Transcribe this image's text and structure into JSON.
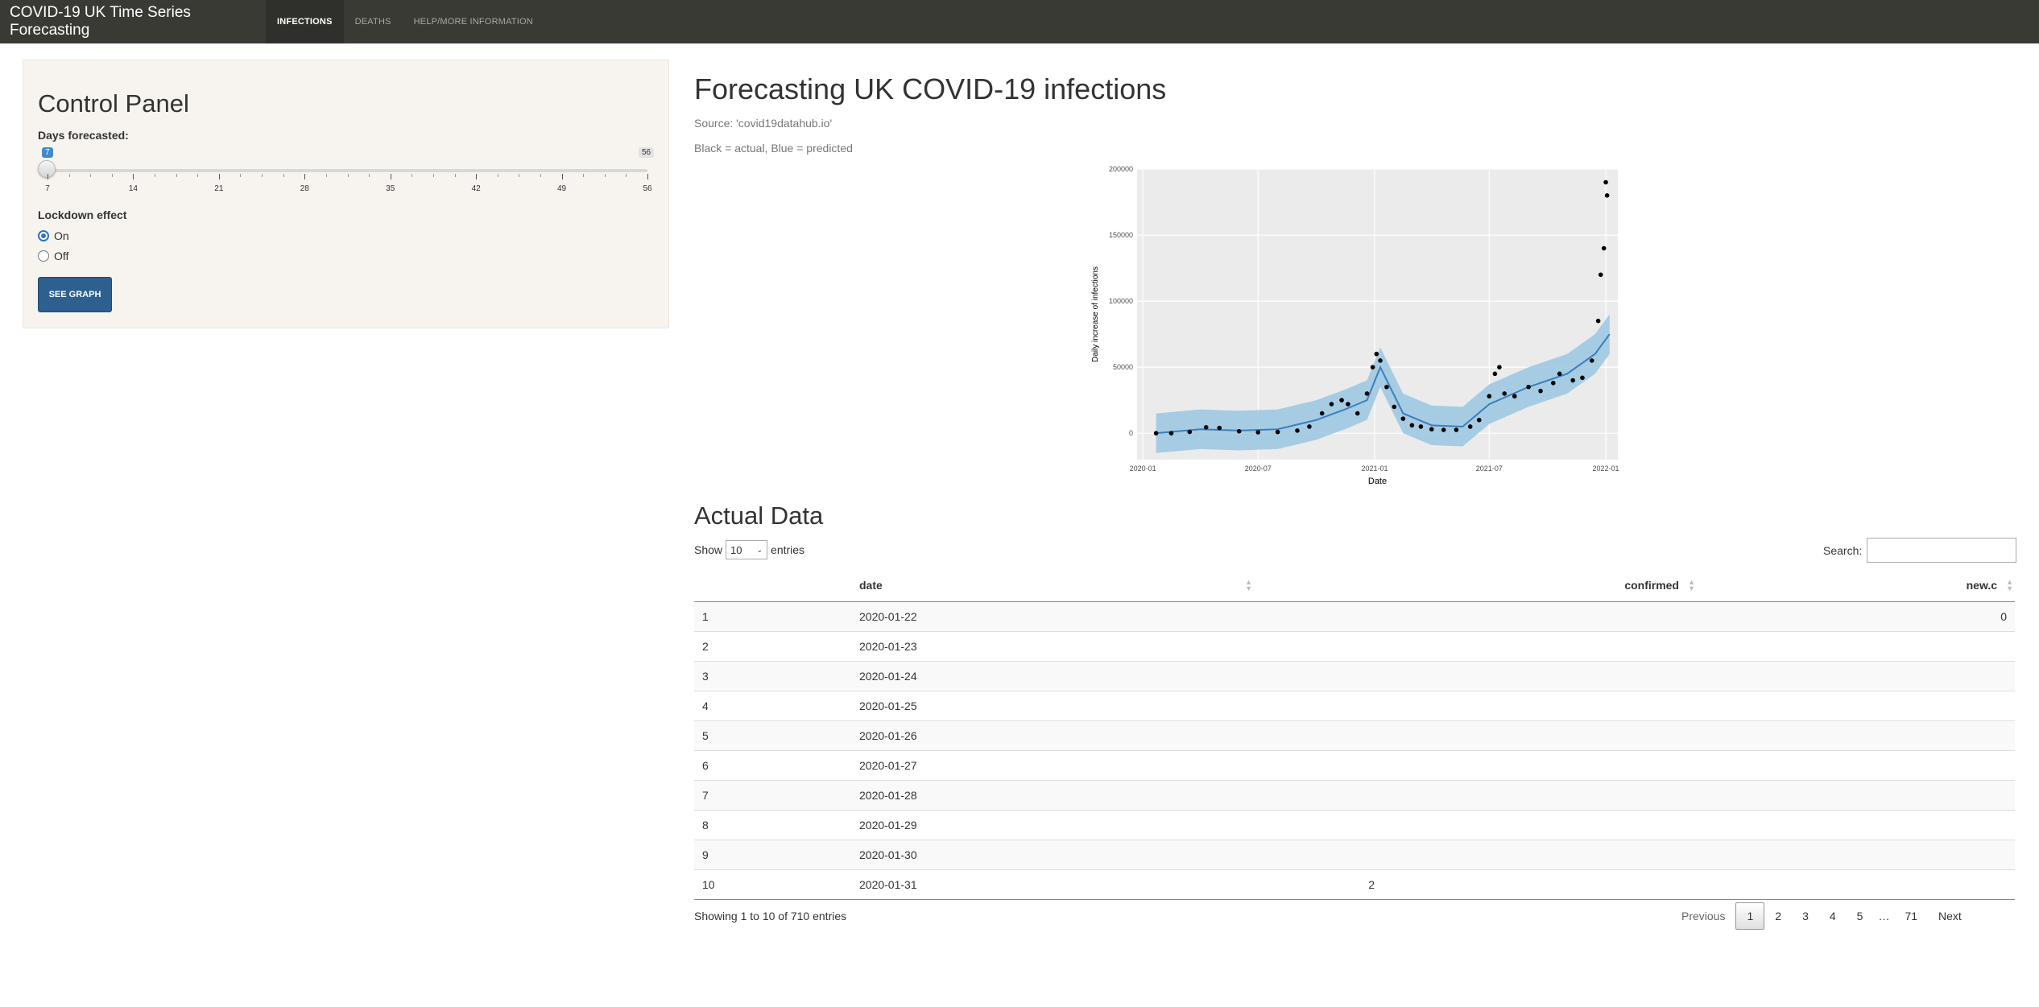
{
  "app": {
    "title": "COVID-19 UK Time Series Forecasting",
    "nav": [
      {
        "label": "INFECTIONS",
        "active": true
      },
      {
        "label": "DEATHS",
        "active": false
      },
      {
        "label": "HELP/MORE INFORMATION",
        "active": false
      }
    ]
  },
  "control_panel": {
    "title": "Control Panel",
    "days_label": "Days forecasted:",
    "slider": {
      "value": "7",
      "min": "7",
      "max": "56",
      "ticks": [
        "7",
        "14",
        "21",
        "28",
        "35",
        "42",
        "49",
        "56"
      ]
    },
    "lockdown_label": "Lockdown effect",
    "options": [
      {
        "label": "On",
        "checked": true
      },
      {
        "label": "Off",
        "checked": false
      }
    ],
    "button_label": "SEE GRAPH"
  },
  "main": {
    "title": "Forecasting UK COVID-19 infections",
    "source": "Source: 'covid19datahub.io'",
    "legend_note": "Black = actual, Blue = predicted"
  },
  "chart_data": {
    "type": "scatter",
    "title": "",
    "xlabel": "Date",
    "ylabel": "Daily increase of infections",
    "x_ticks": [
      "2020-01",
      "2020-07",
      "2021-01",
      "2021-07",
      "2022-01"
    ],
    "y_ticks": [
      "0",
      "50000",
      "100000",
      "150000",
      "200000"
    ],
    "ylim": [
      -20000,
      200000
    ],
    "xlim": [
      "2019-12-23",
      "2022-01-20"
    ],
    "grid": true,
    "series": [
      {
        "name": "actual",
        "color": "#000000",
        "x": [
          "2020-01-22",
          "2020-02-15",
          "2020-03-15",
          "2020-04-10",
          "2020-05-01",
          "2020-06-01",
          "2020-07-01",
          "2020-08-01",
          "2020-09-01",
          "2020-09-20",
          "2020-10-10",
          "2020-10-25",
          "2020-11-10",
          "2020-11-20",
          "2020-12-05",
          "2020-12-20",
          "2020-12-29",
          "2021-01-04",
          "2021-01-10",
          "2021-01-20",
          "2021-02-01",
          "2021-02-15",
          "2021-03-01",
          "2021-03-15",
          "2021-04-01",
          "2021-04-20",
          "2021-05-10",
          "2021-06-01",
          "2021-06-15",
          "2021-07-01",
          "2021-07-10",
          "2021-07-17",
          "2021-07-25",
          "2021-08-10",
          "2021-09-01",
          "2021-09-20",
          "2021-10-10",
          "2021-10-20",
          "2021-11-10",
          "2021-11-25",
          "2021-12-10",
          "2021-12-20",
          "2021-12-24",
          "2021-12-29",
          "2022-01-01",
          "2022-01-03"
        ],
        "y": [
          0,
          0,
          1000,
          4500,
          4000,
          1500,
          700,
          900,
          2000,
          5000,
          15000,
          22000,
          25000,
          22000,
          15000,
          30000,
          50000,
          60000,
          55000,
          35000,
          20000,
          11000,
          6000,
          5000,
          3000,
          2500,
          2500,
          5000,
          10000,
          28000,
          45000,
          50000,
          30000,
          28000,
          35000,
          32000,
          38000,
          45000,
          40000,
          42000,
          55000,
          85000,
          120000,
          140000,
          190000,
          180000
        ]
      },
      {
        "name": "predicted",
        "color": "#3a7fbf",
        "x": [
          "2020-01-22",
          "2020-04-01",
          "2020-06-01",
          "2020-08-01",
          "2020-10-01",
          "2020-11-15",
          "2020-12-20",
          "2021-01-10",
          "2021-02-15",
          "2021-04-01",
          "2021-05-20",
          "2021-07-01",
          "2021-09-01",
          "2021-11-01",
          "2021-12-15",
          "2022-01-07"
        ],
        "y": [
          0,
          3000,
          2000,
          3000,
          10000,
          18000,
          25000,
          50000,
          15000,
          6000,
          5000,
          22000,
          35000,
          45000,
          60000,
          75000
        ]
      }
    ]
  },
  "table": {
    "title": "Actual Data",
    "show_label": "Show",
    "show_value": "10",
    "entries_label": "entries",
    "search_label": "Search:",
    "columns": [
      "",
      "date",
      "confirmed",
      "new.c"
    ],
    "rows": [
      {
        "idx": "1",
        "date": "2020-01-22",
        "confirmed": "",
        "new": "0"
      },
      {
        "idx": "2",
        "date": "2020-01-23",
        "confirmed": "",
        "new": ""
      },
      {
        "idx": "3",
        "date": "2020-01-24",
        "confirmed": "",
        "new": ""
      },
      {
        "idx": "4",
        "date": "2020-01-25",
        "confirmed": "",
        "new": ""
      },
      {
        "idx": "5",
        "date": "2020-01-26",
        "confirmed": "",
        "new": ""
      },
      {
        "idx": "6",
        "date": "2020-01-27",
        "confirmed": "",
        "new": ""
      },
      {
        "idx": "7",
        "date": "2020-01-28",
        "confirmed": "",
        "new": ""
      },
      {
        "idx": "8",
        "date": "2020-01-29",
        "confirmed": "",
        "new": ""
      },
      {
        "idx": "9",
        "date": "2020-01-30",
        "confirmed": "",
        "new": ""
      },
      {
        "idx": "10",
        "date": "2020-01-31",
        "confirmed": "2",
        "new": ""
      }
    ],
    "info": "Showing 1 to 10 of 710 entries",
    "pager": {
      "prev": "Previous",
      "pages": [
        "1",
        "2",
        "3",
        "4",
        "5"
      ],
      "ellipsis": "…",
      "last": "71",
      "next": "Next"
    }
  }
}
